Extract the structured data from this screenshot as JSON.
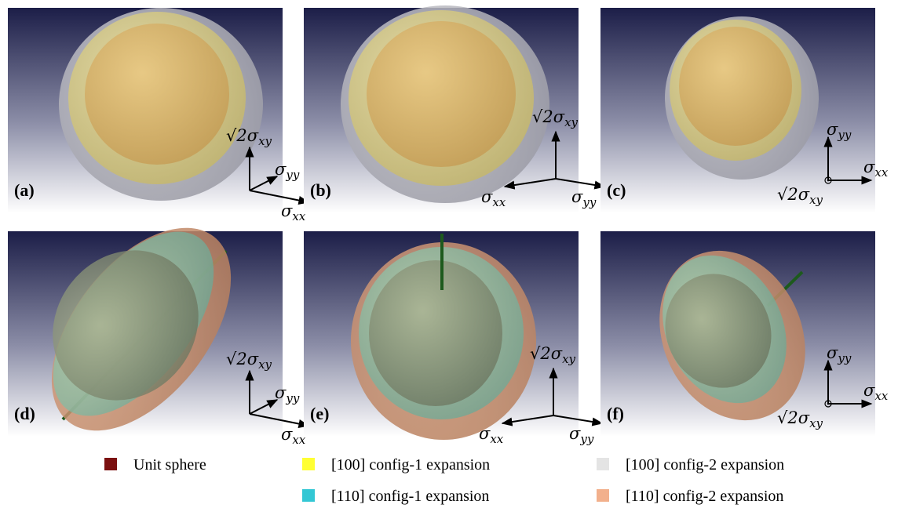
{
  "panels": [
    {
      "label": "(a)",
      "axes": [
        {
          "prefix": "√2σ",
          "sub": "xy"
        },
        {
          "prefix": "σ",
          "sub": "yy"
        },
        {
          "prefix": "σ",
          "sub": "xx"
        }
      ]
    },
    {
      "label": "(b)",
      "axes": [
        {
          "prefix": "√2σ",
          "sub": "xy"
        },
        {
          "prefix": "σ",
          "sub": "xx"
        },
        {
          "prefix": "σ",
          "sub": "yy"
        }
      ]
    },
    {
      "label": "(c)",
      "axes": [
        {
          "prefix": "σ",
          "sub": "yy"
        },
        {
          "prefix": "σ",
          "sub": "xx"
        },
        {
          "prefix": "√2σ",
          "sub": "xy"
        }
      ]
    },
    {
      "label": "(d)",
      "axes": [
        {
          "prefix": "√2σ",
          "sub": "xy"
        },
        {
          "prefix": "σ",
          "sub": "yy"
        },
        {
          "prefix": "σ",
          "sub": "xx"
        }
      ]
    },
    {
      "label": "(e)",
      "axes": [
        {
          "prefix": "√2σ",
          "sub": "xy"
        },
        {
          "prefix": "σ",
          "sub": "xx"
        },
        {
          "prefix": "σ",
          "sub": "yy"
        }
      ]
    },
    {
      "label": "(f)",
      "axes": [
        {
          "prefix": "σ",
          "sub": "yy"
        },
        {
          "prefix": "σ",
          "sub": "xx"
        },
        {
          "prefix": "√2σ",
          "sub": "xy"
        }
      ]
    }
  ],
  "legend": [
    {
      "label": "Unit sphere",
      "color": "#7b1010"
    },
    {
      "label": "[100] config-1 expansion",
      "color": "#ffff33"
    },
    {
      "label": "[100] config-2 expansion",
      "color": "#e4e4e4"
    },
    {
      "label": "[110] config-1 expansion",
      "color": "#33c7d4"
    },
    {
      "label": "[110] config-2 expansion",
      "color": "#f2b08c"
    }
  ]
}
